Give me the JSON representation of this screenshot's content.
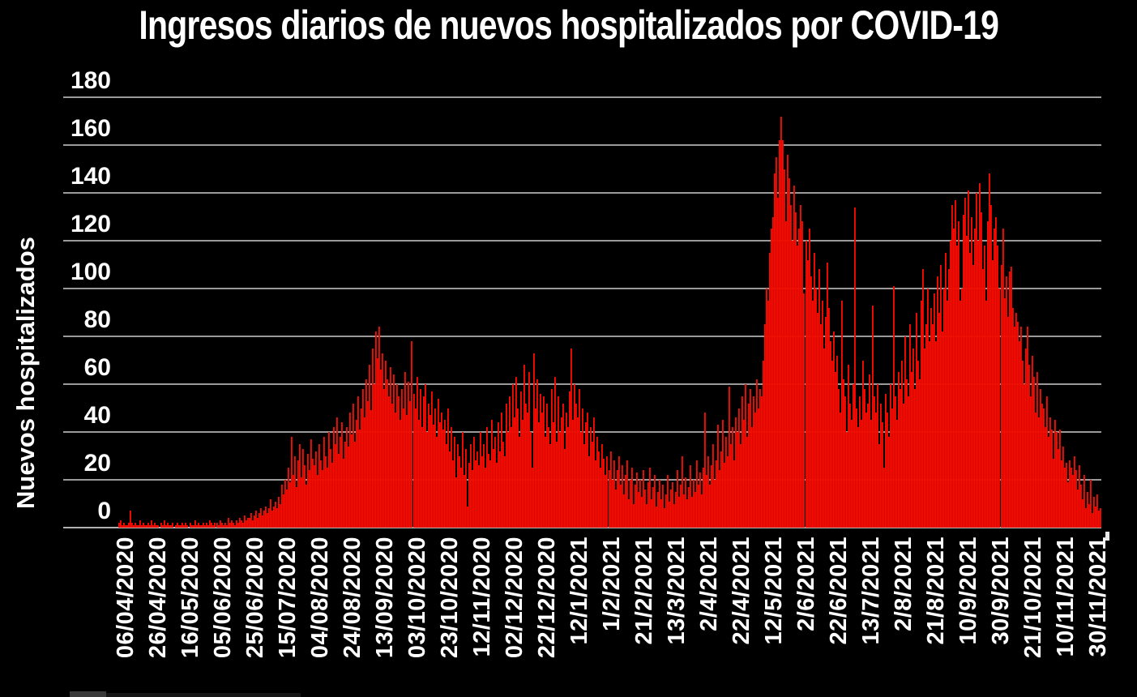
{
  "chart": {
    "title": "Ingresos diarios de nuevos hospitalizados por COVID-19",
    "y_axis_title": "Nuevos hospitalizados",
    "colors": {
      "background": "#000000",
      "bar": "#fb0d00",
      "bar_gap": "#c60000",
      "gridline": "#9a9a9a",
      "text": "#ffffff"
    }
  },
  "chart_data": {
    "type": "bar",
    "title": "Ingresos diarios de nuevos hospitalizados por COVID-19",
    "xlabel": "",
    "ylabel": "Nuevos hospitalizados",
    "ylim": [
      0,
      180
    ],
    "grid": "horizontal",
    "legend": null,
    "bar_color": "#fb0d00",
    "y_ticks": [
      0,
      20,
      40,
      60,
      80,
      100,
      120,
      140,
      160,
      180
    ],
    "x_tick_labels": [
      "06/04/2020",
      "26/04/2020",
      "16/05/2020",
      "05/06/2020",
      "25/06/2020",
      "15/07/2020",
      "04/08/2020",
      "24/08/2020",
      "13/09/2020",
      "03/10/2020",
      "23/10/2020",
      "12/11/2020",
      "02/12/2020",
      "22/12/2020",
      "12/1/2021",
      "1/2/2021",
      "21/2/2021",
      "13/3/2021",
      "2/4/2021",
      "22/4/2021",
      "12/5/2021",
      "2/6/2021",
      "22/6/2021",
      "13/7/2021",
      "2/8/2021",
      "21/8/2021",
      "10/9/2021",
      "30/9/2021",
      "21/10/2021",
      "10/11/2021",
      "30/11/2021"
    ],
    "x_tick_interval_days": 20,
    "values": [
      2,
      3,
      1,
      2,
      1,
      1,
      2,
      7,
      2,
      1,
      2,
      1,
      1,
      3,
      1,
      2,
      1,
      1,
      2,
      1,
      3,
      1,
      2,
      1,
      1,
      0,
      2,
      1,
      3,
      1,
      2,
      1,
      1,
      2,
      0,
      1,
      2,
      1,
      1,
      2,
      1,
      2,
      1,
      0,
      2,
      1,
      1,
      3,
      1,
      2,
      1,
      1,
      2,
      1,
      2,
      1,
      3,
      2,
      1,
      2,
      2,
      1,
      3,
      2,
      1,
      2,
      1,
      4,
      2,
      3,
      2,
      1,
      3,
      2,
      4,
      3,
      2,
      5,
      3,
      4,
      4,
      6,
      3,
      5,
      7,
      4,
      6,
      8,
      5,
      7,
      9,
      6,
      8,
      12,
      7,
      9,
      11,
      8,
      13,
      10,
      18,
      14,
      20,
      16,
      25,
      19,
      38,
      22,
      30,
      17,
      28,
      35,
      21,
      33,
      26,
      18,
      31,
      24,
      37,
      29,
      26,
      32,
      22,
      35,
      28,
      24,
      38,
      30,
      25,
      40,
      33,
      27,
      42,
      35,
      46,
      31,
      38,
      44,
      29,
      36,
      42,
      34,
      48,
      39,
      52,
      36,
      45,
      55,
      41,
      50,
      58,
      46,
      62,
      53,
      68,
      49,
      75,
      60,
      82,
      71,
      84,
      66,
      73,
      58,
      70,
      62,
      55,
      67,
      52,
      64,
      48,
      60,
      55,
      45,
      58,
      50,
      65,
      47,
      61,
      53,
      78,
      56,
      50,
      63,
      45,
      58,
      42,
      55,
      60,
      40,
      52,
      47,
      57,
      43,
      50,
      38,
      54,
      44,
      48,
      41,
      45,
      35,
      50,
      32,
      42,
      28,
      38,
      21,
      35,
      30,
      25,
      40,
      22,
      33,
      9,
      27,
      35,
      24,
      38,
      28,
      32,
      26,
      40,
      30,
      35,
      25,
      42,
      31,
      28,
      45,
      33,
      38,
      27,
      44,
      32,
      48,
      36,
      30,
      52,
      40,
      55,
      42,
      60,
      46,
      63,
      50,
      38,
      57,
      45,
      68,
      52,
      48,
      65,
      40,
      25,
      73,
      50,
      62,
      44,
      56,
      48,
      55,
      38,
      52,
      42,
      35,
      58,
      44,
      63,
      36,
      55,
      40,
      46,
      52,
      33,
      48,
      42,
      57,
      75,
      45,
      60,
      52,
      46,
      58,
      40,
      50,
      35,
      44,
      48,
      30,
      42,
      36,
      46,
      28,
      38,
      32,
      25,
      35,
      29,
      22,
      30,
      24,
      32,
      20,
      28,
      16,
      24,
      30,
      18,
      26,
      14,
      22,
      28,
      12,
      20,
      25,
      10,
      18,
      23,
      15,
      20,
      13,
      24,
      16,
      10,
      19,
      25,
      12,
      17,
      22,
      9,
      15,
      20,
      12,
      18,
      8,
      14,
      22,
      11,
      16,
      19,
      10,
      15,
      24,
      13,
      18,
      30,
      14,
      21,
      12,
      17,
      26,
      13,
      20,
      15,
      28,
      18,
      23,
      14,
      25,
      48,
      22,
      30,
      18,
      26,
      35,
      20,
      28,
      43,
      24,
      32,
      45,
      27,
      38,
      30,
      59,
      35,
      42,
      28,
      46,
      40,
      50,
      35,
      55,
      45,
      60,
      38,
      52,
      58,
      42,
      55,
      48,
      62,
      50,
      58,
      55,
      70,
      85,
      100,
      95,
      115,
      125,
      130,
      148,
      155,
      138,
      162,
      172,
      162,
      150,
      128,
      156,
      146,
      135,
      120,
      143,
      132,
      118,
      125,
      135,
      128,
      98,
      120,
      112,
      125,
      105,
      95,
      115,
      100,
      90,
      108,
      85,
      95,
      75,
      88,
      111,
      92,
      78,
      70,
      82,
      65,
      72,
      58,
      48,
      95,
      62,
      55,
      40,
      68,
      52,
      45,
      60,
      134,
      50,
      42,
      55,
      45,
      70,
      58,
      48,
      52,
      64,
      45,
      93,
      55,
      48,
      60,
      35,
      52,
      44,
      25,
      56,
      48,
      38,
      60,
      50,
      101,
      55,
      45,
      65,
      58,
      70,
      52,
      80,
      62,
      55,
      85,
      65,
      75,
      58,
      90,
      70,
      62,
      95,
      108,
      75,
      85,
      100,
      78,
      92,
      85,
      98,
      78,
      105,
      90,
      110,
      82,
      100,
      115,
      95,
      108,
      120,
      135,
      125,
      137,
      118,
      128,
      95,
      100,
      131,
      138,
      122,
      141,
      115,
      130,
      110,
      125,
      140,
      120,
      144,
      132,
      108,
      118,
      95,
      128,
      148,
      135,
      112,
      125,
      130,
      118,
      100,
      110,
      125,
      96,
      105,
      88,
      107,
      109,
      92,
      84,
      90,
      86,
      78,
      84,
      70,
      60,
      75,
      84,
      68,
      55,
      72,
      63,
      48,
      65,
      46,
      58,
      52,
      50,
      42,
      55,
      38,
      46,
      41,
      29,
      45,
      40,
      33,
      41,
      28,
      34,
      25,
      27,
      19,
      28,
      25,
      22,
      30,
      24,
      16,
      26,
      18,
      12,
      22,
      8,
      15,
      10,
      20,
      6,
      13,
      9,
      14,
      7,
      8
    ]
  }
}
